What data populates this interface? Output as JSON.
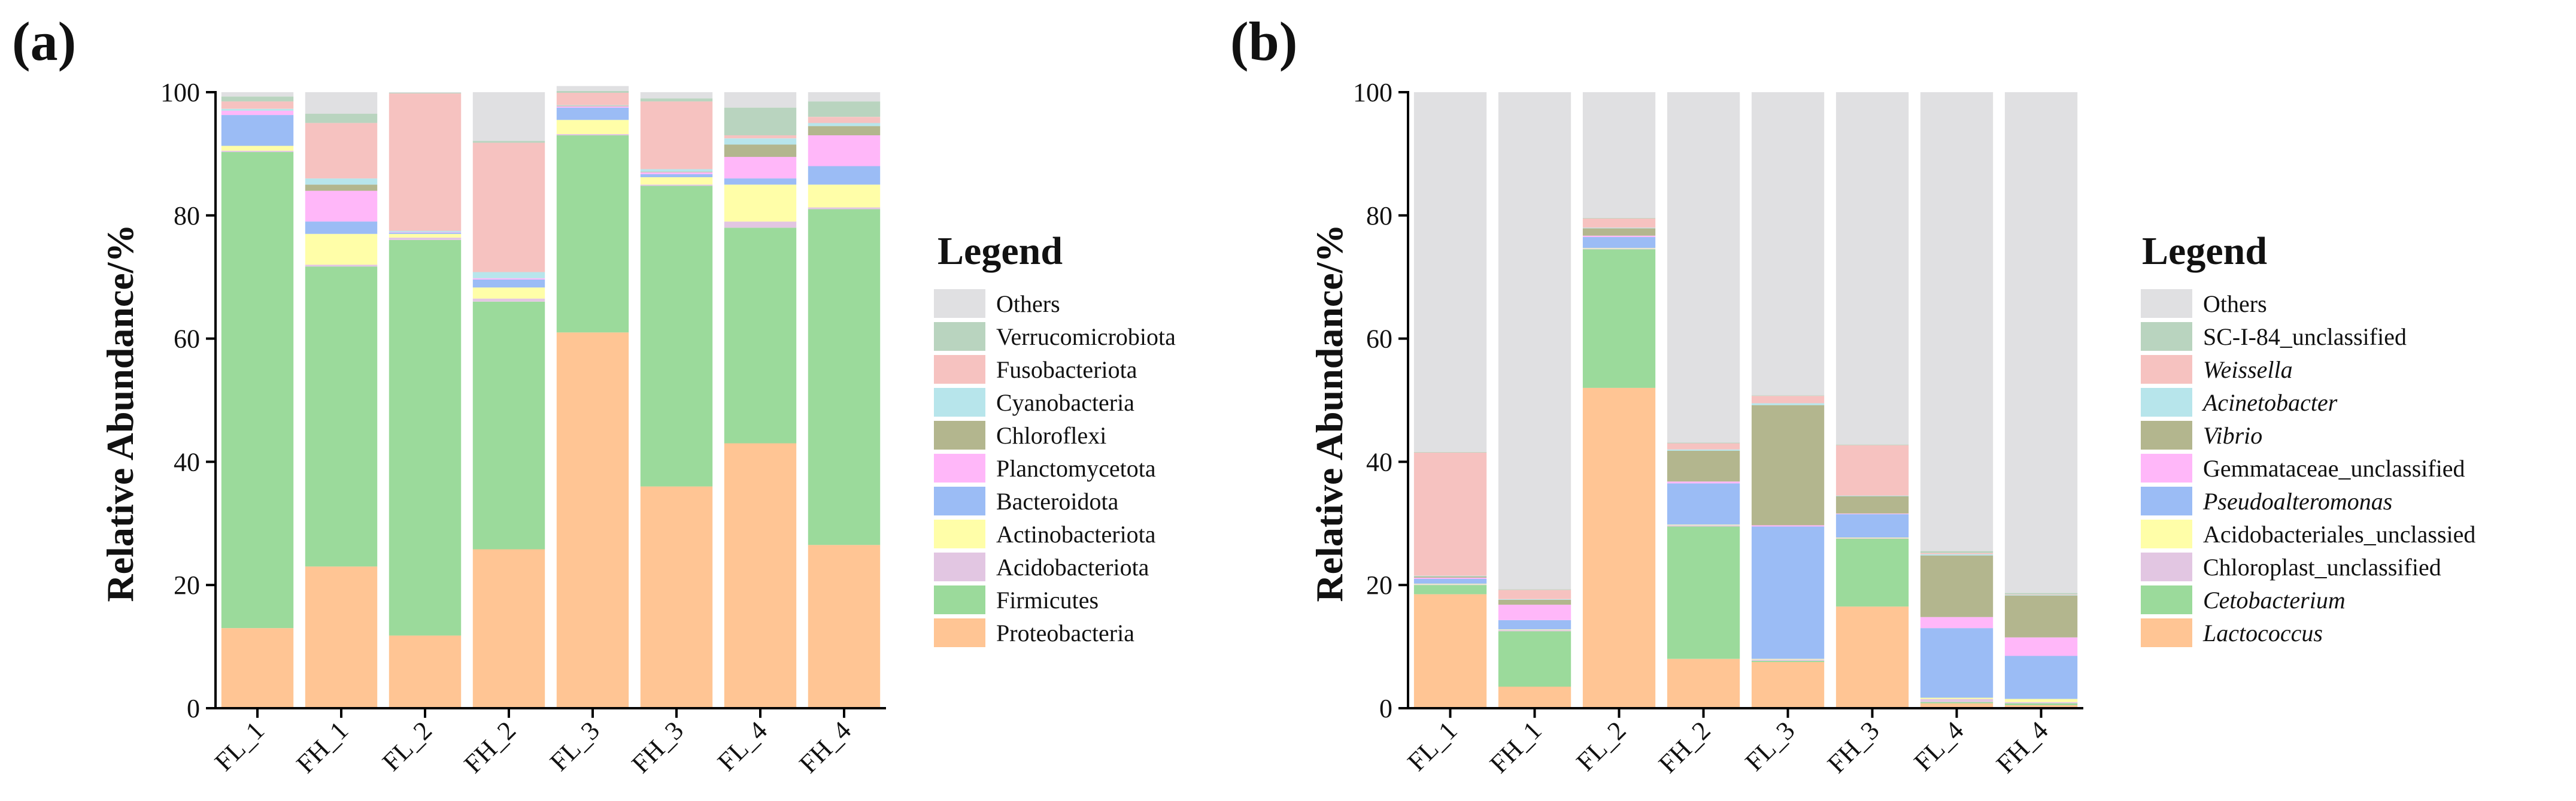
{
  "figure": {
    "panels": [
      "(a)",
      "(b)"
    ]
  },
  "chart_data": [
    {
      "type": "bar",
      "stacked": true,
      "panel": "(a)",
      "ylabel": "Relative Abundance/%",
      "ylim": [
        0,
        100
      ],
      "yticks": [
        0,
        20,
        40,
        60,
        80,
        100
      ],
      "categories": [
        "FL_1",
        "FH_1",
        "FL_2",
        "FH_2",
        "FL_3",
        "FH_3",
        "FL_4",
        "FH_4"
      ],
      "legend_title": "Legend",
      "series": [
        {
          "name": "Proteobacteria",
          "color": "#FFC594",
          "values": [
            13,
            23,
            11.8,
            25.8,
            61,
            36,
            43,
            26.5
          ]
        },
        {
          "name": "Firmicutes",
          "color": "#9BDA9B",
          "values": [
            77.3,
            48.7,
            64.2,
            40.2,
            32,
            48.8,
            35,
            54.5
          ]
        },
        {
          "name": "Acidobacteriota",
          "color": "#E2C6E2",
          "values": [
            0.2,
            0.3,
            0.4,
            0.5,
            0.2,
            0.2,
            1,
            0.3
          ]
        },
        {
          "name": "Actinobacteriota",
          "color": "#FFFEA8",
          "values": [
            0.8,
            5,
            0.6,
            1.8,
            2.3,
            1.2,
            6,
            3.7
          ]
        },
        {
          "name": "Bacteroidota",
          "color": "#9BBCF5",
          "values": [
            5,
            2,
            0.2,
            1.3,
            2,
            0.5,
            1,
            3
          ]
        },
        {
          "name": "Planctomycetota",
          "color": "#FFB7F9",
          "values": [
            0.7,
            5,
            0.1,
            0.2,
            0.2,
            0.3,
            3.5,
            5
          ]
        },
        {
          "name": "Chloroflexi",
          "color": "#B3B68E",
          "values": [
            0,
            1,
            0,
            0,
            0.1,
            0.1,
            2,
            1.5
          ]
        },
        {
          "name": "Cyanobacteria",
          "color": "#B7E5EB",
          "values": [
            0.3,
            1,
            0.2,
            1,
            0.1,
            0.4,
            1,
            0.5
          ]
        },
        {
          "name": "Fusobacteriota",
          "color": "#F6C2C0",
          "values": [
            1.2,
            9,
            22.3,
            21,
            2,
            11,
            0.5,
            1
          ]
        },
        {
          "name": "Verrucomicrobiota",
          "color": "#B9D4BF",
          "values": [
            0.8,
            1.5,
            0.1,
            0.3,
            0.3,
            0.5,
            4.5,
            2.5
          ]
        },
        {
          "name": "Others",
          "color": "#E0E0E2",
          "values": [
            0.7,
            3.5,
            0.1,
            7.9,
            0.8,
            1,
            2.5,
            1.5
          ]
        }
      ]
    },
    {
      "type": "bar",
      "stacked": true,
      "panel": "(b)",
      "ylabel": "Relative Abundance/%",
      "ylim": [
        0,
        100
      ],
      "yticks": [
        0,
        20,
        40,
        60,
        80,
        100
      ],
      "categories": [
        "FL_1",
        "FH_1",
        "FL_2",
        "FH_2",
        "FL_3",
        "FH_3",
        "FL_4",
        "FH_4"
      ],
      "legend_title": "Legend",
      "series": [
        {
          "name": "Lactococcus",
          "italic": true,
          "color": "#FFC594",
          "values": [
            18.5,
            3.5,
            52,
            8,
            7.5,
            16.5,
            0.8,
            0.5
          ]
        },
        {
          "name": "Cetobacterium",
          "italic": true,
          "color": "#9BDA9B",
          "values": [
            1.5,
            9,
            22.5,
            21.5,
            0.2,
            11,
            0.2,
            0.3
          ]
        },
        {
          "name": "Chloroplast_unclassified",
          "italic": false,
          "color": "#E2C6E2",
          "values": [
            0.1,
            0.2,
            0.1,
            0.2,
            0.2,
            0.1,
            0.5,
            0.2
          ]
        },
        {
          "name": "Acidobacteriales_unclassied",
          "italic": false,
          "color": "#FFFEA8",
          "values": [
            0.1,
            0.1,
            0.1,
            0.1,
            0.1,
            0.1,
            0.2,
            0.5
          ]
        },
        {
          "name": "Pseudoalteromonas",
          "italic": true,
          "color": "#9BBCF5",
          "values": [
            0.8,
            1.5,
            1.8,
            6.7,
            21.5,
            3.8,
            11.3,
            7
          ]
        },
        {
          "name": "Gemmataceae_unclassified",
          "italic": false,
          "color": "#FFB7F9",
          "values": [
            0.2,
            2.5,
            0.2,
            0.3,
            0.2,
            0.1,
            1.8,
            3
          ]
        },
        {
          "name": "Vibrio",
          "italic": true,
          "color": "#B3B68E",
          "values": [
            0.2,
            0.8,
            1.2,
            5,
            19.5,
            2.8,
            10,
            6.8
          ]
        },
        {
          "name": "Acinetobacter",
          "italic": true,
          "color": "#B7E5EB",
          "values": [
            0.1,
            0.1,
            0.1,
            0.2,
            0.3,
            0.1,
            0.2,
            0.1
          ]
        },
        {
          "name": "Weissella",
          "italic": true,
          "color": "#F6C2C0",
          "values": [
            20,
            1.5,
            1.5,
            1,
            1.2,
            8.2,
            0.2,
            0.1
          ]
        },
        {
          "name": "SC-I-84_unclassified",
          "italic": false,
          "color": "#B9D4BF",
          "values": [
            0.1,
            0.1,
            0.1,
            0.1,
            0.1,
            0.1,
            0.3,
            0.2
          ]
        },
        {
          "name": "Others",
          "italic": false,
          "color": "#E0E0E2",
          "values": [
            58.4,
            80.7,
            20.4,
            56.9,
            49.2,
            57.2,
            74.5,
            81.3
          ]
        }
      ]
    }
  ]
}
